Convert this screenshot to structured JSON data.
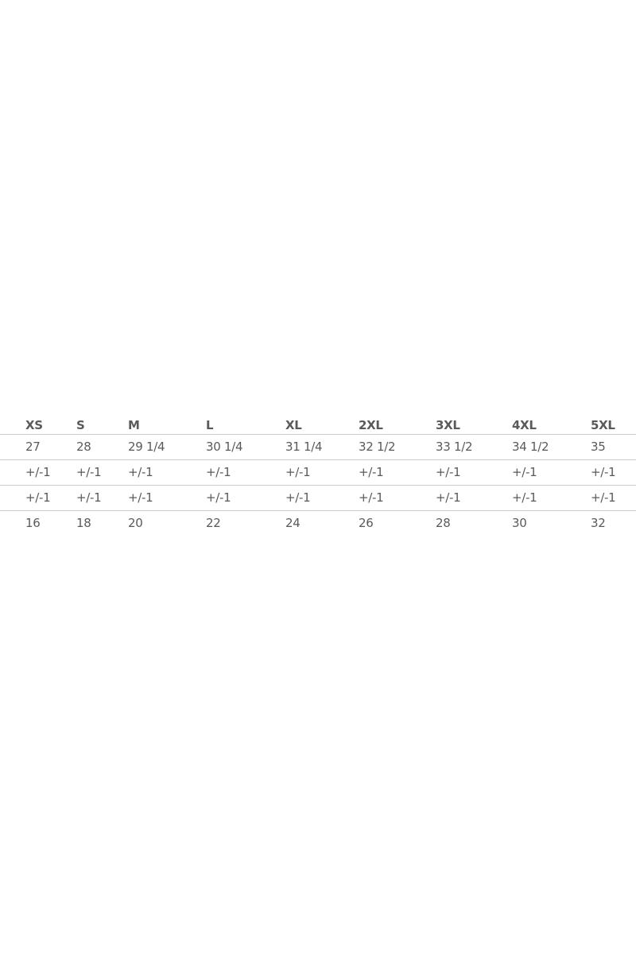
{
  "size_chart": {
    "headers": [
      "XS",
      "S",
      "M",
      "L",
      "XL",
      "2XL",
      "3XL",
      "4XL",
      "5XL"
    ],
    "rows": [
      [
        "27",
        "28",
        "29 1/4",
        "30 1/4",
        "31 1/4",
        "32 1/2",
        "33 1/2",
        "34 1/2",
        "35"
      ],
      [
        "+/-1",
        "+/-1",
        "+/-1",
        "+/-1",
        "+/-1",
        "+/-1",
        "+/-1",
        "+/-1",
        "+/-1"
      ],
      [
        "+/-1",
        "+/-1",
        "+/-1",
        "+/-1",
        "+/-1",
        "+/-1",
        "+/-1",
        "+/-1",
        "+/-1"
      ],
      [
        "16",
        "18",
        "20",
        "22",
        "24",
        "26",
        "28",
        "30",
        "32"
      ]
    ]
  },
  "colors": {
    "text": "#5a5a5a",
    "divider": "#cfcfcf",
    "background": "#ffffff"
  }
}
